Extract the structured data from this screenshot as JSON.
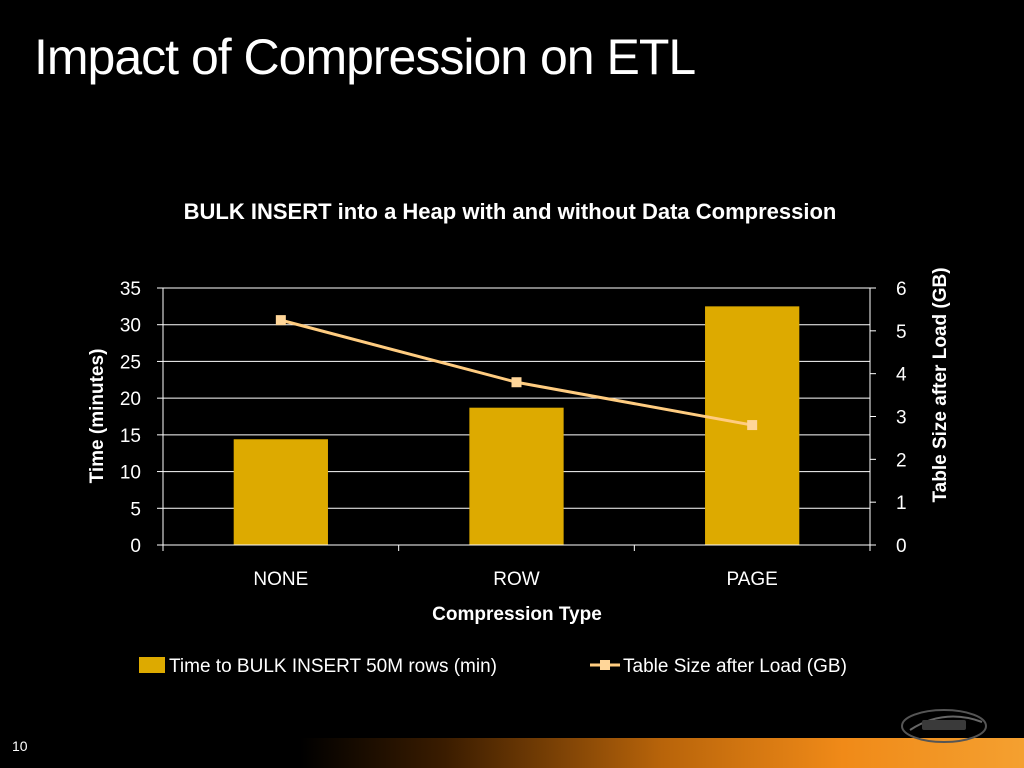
{
  "slide": {
    "title": "Impact of Compression on ETL",
    "number": "10"
  },
  "colors": {
    "bar": "#DDAA00",
    "line": "#FFCC80",
    "marker": "#FFD699",
    "gridline": "#FFFFFF",
    "background": "#000000"
  },
  "chart_data": {
    "type": "bar",
    "title": "BULK INSERT into a Heap with and without Data Compression",
    "xlabel": "Compression Type",
    "ylabel": "Time (minutes)",
    "y2label": "Table Size after Load (GB)",
    "categories": [
      "NONE",
      "ROW",
      "PAGE"
    ],
    "ylim": [
      0,
      35
    ],
    "yticks": [
      0,
      5,
      10,
      15,
      20,
      25,
      30,
      35
    ],
    "y2lim": [
      0,
      6
    ],
    "y2ticks": [
      0,
      1,
      2,
      3,
      4,
      5,
      6
    ],
    "grid": true,
    "legend_position": "bottom",
    "series": [
      {
        "name": "Time to BULK INSERT 50M rows (min)",
        "type": "bar",
        "axis": "left",
        "values": [
          14.4,
          18.7,
          32.5
        ]
      },
      {
        "name": "Table Size after Load (GB)",
        "type": "line",
        "axis": "right",
        "values": [
          5.25,
          3.8,
          2.8
        ]
      }
    ]
  }
}
